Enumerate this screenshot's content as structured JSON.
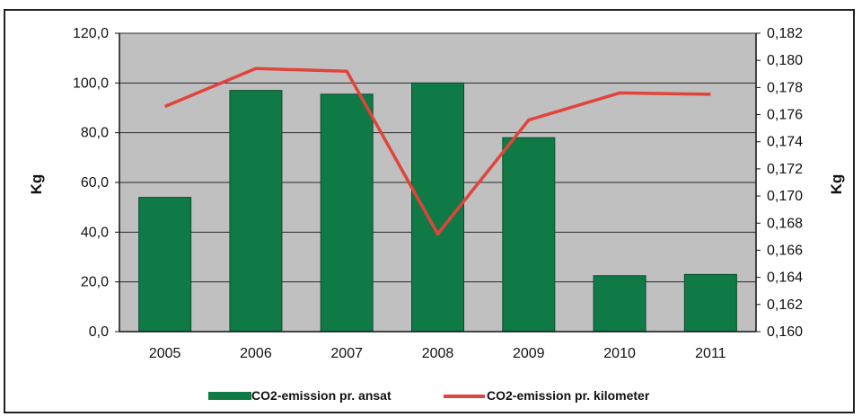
{
  "chart_data": {
    "type": "bar+line",
    "categories": [
      "2005",
      "2006",
      "2007",
      "2008",
      "2009",
      "2010",
      "2011"
    ],
    "series": [
      {
        "name": "CO2-emission pr. ansat",
        "type": "bar",
        "axis": "left",
        "color": "#0f7a45",
        "values": [
          54.0,
          97.0,
          95.5,
          100.0,
          78.0,
          22.5,
          23.0
        ]
      },
      {
        "name": "CO2-emission pr. kilometer",
        "type": "line",
        "axis": "right",
        "color": "#e0443a",
        "values": [
          0.1766,
          0.1794,
          0.1792,
          0.1672,
          0.1756,
          0.1776,
          0.1775
        ]
      }
    ],
    "ylabel_left": "Kg",
    "ylabel_right": "Kg",
    "ylim_left": [
      0,
      120
    ],
    "ylim_right": [
      0.16,
      0.182
    ],
    "yticks_left": [
      "0,0",
      "20,0",
      "40,0",
      "60,0",
      "80,0",
      "100,0",
      "120,0"
    ],
    "yticks_right": [
      "0,160",
      "0,162",
      "0,164",
      "0,166",
      "0,168",
      "0,170",
      "0,172",
      "0,174",
      "0,176",
      "0,178",
      "0,180",
      "0,182"
    ],
    "grid": true,
    "plot_background": "#c0c0c0",
    "legend_position": "bottom"
  }
}
